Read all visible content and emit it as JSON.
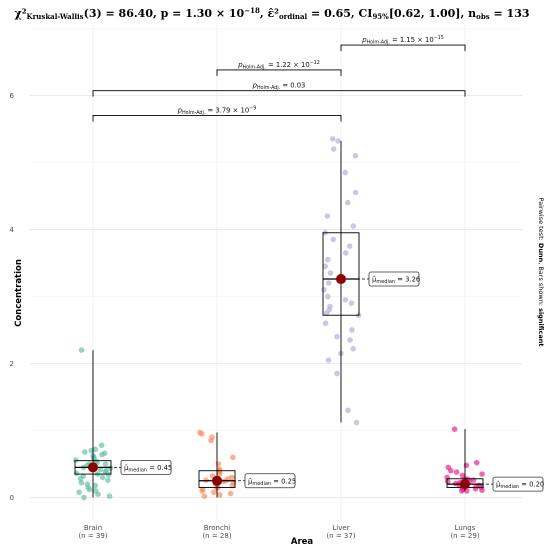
{
  "chart_data": {
    "type": "box-violin-jitter",
    "title_parts": {
      "stat": "χ²",
      "stat_sub": "Kruskal-Wallis",
      "rest": "(3) = 86.40, p = 1.30 × 10",
      "p_exp": "−18",
      "eps_sym": "ε̂²",
      "eps_sub": "ordinal",
      "eps_val": " = 0.65, CI",
      "ci_sub": "95%",
      "ci_val": "[0.62, 1.00], n",
      "n_sub": "obs",
      "n_val": " = 133"
    },
    "xlabel": "Area",
    "ylabel": "Concentration",
    "ylim": [
      -0.35,
      7.05
    ],
    "yticks": [
      0,
      2,
      4,
      6
    ],
    "ytick_labels": [
      "0",
      "2",
      "4",
      "6"
    ],
    "right_caption_parts": {
      "a": "Pairwise test: ",
      "b": "Dunn",
      "c": ", Bars shown: ",
      "d": "significant"
    },
    "grid": true,
    "groups": [
      {
        "name": "Brain",
        "n_label": "(n = 39)",
        "color": "#66C2A5",
        "whisker_low": 0.0,
        "q1": 0.35,
        "median": 0.45,
        "q3": 0.55,
        "whisker_high": 2.2,
        "median_label": "= 0.45",
        "points": [
          2.2,
          0.78,
          0.72,
          0.7,
          0.68,
          0.66,
          0.64,
          0.62,
          0.6,
          0.58,
          0.56,
          0.54,
          0.52,
          0.5,
          0.5,
          0.48,
          0.46,
          0.45,
          0.44,
          0.42,
          0.4,
          0.38,
          0.36,
          0.35,
          0.34,
          0.32,
          0.3,
          0.28,
          0.26,
          0.22,
          0.2,
          0.18,
          0.15,
          0.12,
          0.1,
          0.08,
          0.05,
          0.02,
          0.0
        ]
      },
      {
        "name": "Bronchi",
        "n_label": "(n = 28)",
        "color": "#FC8D62",
        "whisker_low": 0.0,
        "q1": 0.15,
        "median": 0.25,
        "q3": 0.4,
        "whisker_high": 0.97,
        "median_label": "= 0.25",
        "points": [
          0.97,
          0.95,
          0.9,
          0.85,
          0.6,
          0.5,
          0.42,
          0.4,
          0.38,
          0.35,
          0.32,
          0.3,
          0.28,
          0.26,
          0.25,
          0.24,
          0.22,
          0.2,
          0.18,
          0.16,
          0.15,
          0.14,
          0.12,
          0.1,
          0.08,
          0.06,
          0.04,
          0.02
        ]
      },
      {
        "name": "Liver",
        "n_label": "(n = 37)",
        "color": "#B3B0DC",
        "whisker_low": 1.12,
        "q1": 2.72,
        "median": 3.26,
        "q3": 3.95,
        "whisker_high": 5.32,
        "median_label": "= 3.26",
        "points": [
          5.35,
          5.32,
          5.2,
          5.1,
          4.85,
          4.55,
          4.4,
          4.2,
          4.05,
          3.95,
          3.85,
          3.75,
          3.65,
          3.55,
          3.45,
          3.35,
          3.3,
          3.26,
          3.2,
          3.1,
          3.0,
          2.95,
          2.9,
          2.85,
          2.8,
          2.75,
          2.72,
          2.6,
          2.5,
          2.4,
          2.35,
          2.22,
          2.15,
          2.05,
          1.85,
          1.3,
          1.12
        ]
      },
      {
        "name": "Lungs",
        "n_label": "(n = 29)",
        "color": "#E7298A",
        "whisker_low": 0.1,
        "q1": 0.15,
        "median": 0.2,
        "q3": 0.28,
        "whisker_high": 1.02,
        "median_label": "= 0.20",
        "points": [
          1.02,
          0.52,
          0.48,
          0.45,
          0.4,
          0.38,
          0.35,
          0.33,
          0.3,
          0.28,
          0.27,
          0.26,
          0.25,
          0.24,
          0.23,
          0.22,
          0.21,
          0.2,
          0.19,
          0.18,
          0.17,
          0.16,
          0.15,
          0.14,
          0.13,
          0.12,
          0.11,
          0.1,
          0.1
        ]
      }
    ],
    "median_prefix": "μ̂",
    "median_sub": "median",
    "comparisons": [
      {
        "from": 2,
        "to": 3,
        "y": 6.75,
        "p_text": "= 1.15 × 10",
        "p_exp": "−15"
      },
      {
        "from": 1,
        "to": 2,
        "y": 6.38,
        "p_text": "= 1.22 × 10",
        "p_exp": "−12"
      },
      {
        "from": 0,
        "to": 3,
        "y": 6.07,
        "p_text": "= 0.03",
        "p_exp": ""
      },
      {
        "from": 0,
        "to": 2,
        "y": 5.7,
        "p_text": "= 3.79 × 10",
        "p_exp": "−9"
      }
    ],
    "p_label": "p",
    "p_label_sub": "Holm-Adj."
  }
}
